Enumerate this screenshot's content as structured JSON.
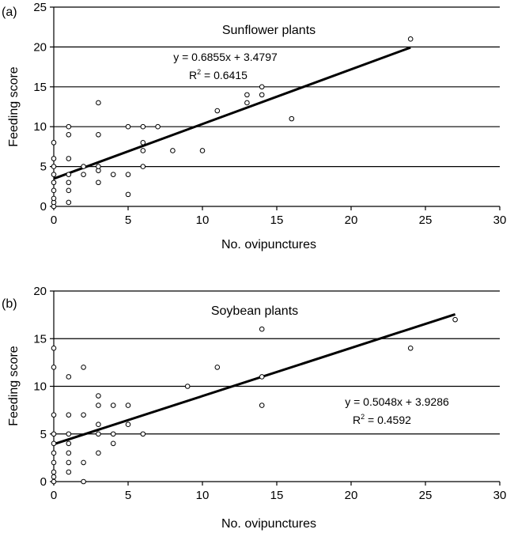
{
  "chart_data": [
    {
      "type": "scatter",
      "panel_label": "(a)",
      "title": "Sunflower plants",
      "xlabel": "No. ovipunctures",
      "ylabel": "Feeding score",
      "xlim": [
        0,
        30
      ],
      "ylim": [
        0,
        25
      ],
      "xticks": [
        0,
        5,
        10,
        15,
        20,
        25,
        30
      ],
      "yticks": [
        0,
        5,
        10,
        15,
        20,
        25
      ],
      "grid": "horizontal",
      "marker": "open-circle",
      "points": [
        [
          0,
          0
        ],
        [
          0,
          0.5
        ],
        [
          0,
          1
        ],
        [
          0,
          2
        ],
        [
          0,
          3
        ],
        [
          0,
          4
        ],
        [
          0,
          5
        ],
        [
          0,
          6
        ],
        [
          0,
          8
        ],
        [
          1,
          0.5
        ],
        [
          1,
          2
        ],
        [
          1,
          3
        ],
        [
          1,
          4
        ],
        [
          1,
          6
        ],
        [
          1,
          9
        ],
        [
          1,
          10
        ],
        [
          2,
          4
        ],
        [
          2,
          5
        ],
        [
          3,
          3
        ],
        [
          3,
          4.5
        ],
        [
          3,
          5
        ],
        [
          3,
          9
        ],
        [
          3,
          13
        ],
        [
          4,
          4
        ],
        [
          5,
          1.5
        ],
        [
          5,
          4
        ],
        [
          5,
          10
        ],
        [
          6,
          5
        ],
        [
          6,
          7
        ],
        [
          6,
          8
        ],
        [
          6,
          10
        ],
        [
          7,
          10
        ],
        [
          8,
          7
        ],
        [
          10,
          7
        ],
        [
          11,
          12
        ],
        [
          13,
          13
        ],
        [
          13,
          14
        ],
        [
          14,
          14
        ],
        [
          14,
          15
        ],
        [
          16,
          11
        ],
        [
          24,
          21
        ]
      ],
      "trendline": {
        "slope": 0.6855,
        "intercept": 3.4797,
        "x_range": [
          0,
          24
        ]
      },
      "equation": "y = 0.6855x + 3.4797",
      "r2_prefix": "R",
      "r2_sup": "2",
      "r2_value": " = 0.6415"
    },
    {
      "type": "scatter",
      "panel_label": "(b)",
      "title": "Soybean plants",
      "xlabel": "No. ovipunctures",
      "ylabel": "Feeding score",
      "xlim": [
        0,
        30
      ],
      "ylim": [
        0,
        20
      ],
      "xticks": [
        0,
        5,
        10,
        15,
        20,
        25,
        30
      ],
      "yticks": [
        0,
        5,
        10,
        15,
        20
      ],
      "grid": "horizontal",
      "marker": "open-circle",
      "points": [
        [
          0,
          0
        ],
        [
          0,
          0.5
        ],
        [
          0,
          1
        ],
        [
          0,
          2
        ],
        [
          0,
          3
        ],
        [
          0,
          4
        ],
        [
          0,
          5
        ],
        [
          0,
          7
        ],
        [
          0,
          12
        ],
        [
          0,
          14
        ],
        [
          1,
          1
        ],
        [
          1,
          2
        ],
        [
          1,
          3
        ],
        [
          1,
          4
        ],
        [
          1,
          5
        ],
        [
          1,
          7
        ],
        [
          1,
          11
        ],
        [
          2,
          0
        ],
        [
          2,
          2
        ],
        [
          2,
          7
        ],
        [
          2,
          12
        ],
        [
          3,
          3
        ],
        [
          3,
          5
        ],
        [
          3,
          6
        ],
        [
          3,
          8
        ],
        [
          3,
          9
        ],
        [
          4,
          4
        ],
        [
          4,
          5
        ],
        [
          4,
          8
        ],
        [
          5,
          6
        ],
        [
          5,
          8
        ],
        [
          6,
          5
        ],
        [
          9,
          10
        ],
        [
          11,
          12
        ],
        [
          14,
          8
        ],
        [
          14,
          11
        ],
        [
          14,
          16
        ],
        [
          24,
          14
        ],
        [
          27,
          17
        ]
      ],
      "trendline": {
        "slope": 0.5048,
        "intercept": 3.9286,
        "x_range": [
          0,
          27
        ]
      },
      "equation": "y = 0.5048x + 3.9286",
      "r2_prefix": "R",
      "r2_sup": "2",
      "r2_value": " = 0.4592"
    }
  ]
}
